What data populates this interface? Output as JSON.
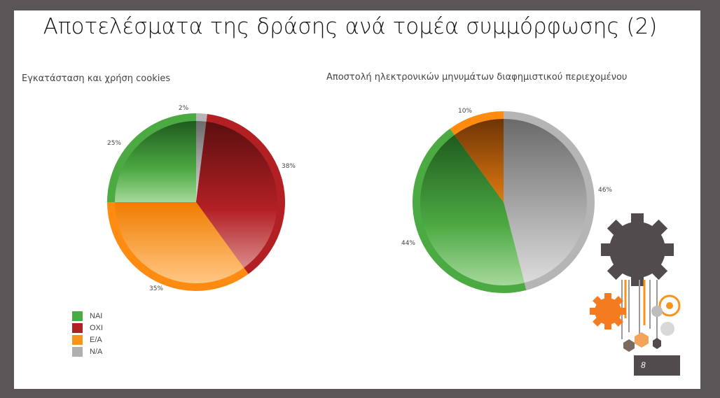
{
  "slide": {
    "title": "Αποτελέσματα της δράσης ανά τομέα συμμόρφωσης (2)",
    "page_number": "8"
  },
  "legend": [
    {
      "label": "ΝΑΙ",
      "color": "#4caa42"
    },
    {
      "label": "ΟΧΙ",
      "color": "#b32024"
    },
    {
      "label": "Ε/Α",
      "color": "#f7941d"
    },
    {
      "label": "N/A",
      "color": "#b0b0b0"
    }
  ],
  "chart_data": [
    {
      "type": "pie",
      "title": "Εγκατάσταση και χρήση cookies",
      "categories": [
        "N/A",
        "ΟΧΙ",
        "Ε/Α",
        "ΝΑΙ"
      ],
      "values": [
        2,
        38,
        35,
        25
      ],
      "labels": [
        "2%",
        "38%",
        "35%",
        "25%"
      ]
    },
    {
      "type": "pie",
      "title": "Αποστολή ηλεκτρονικών μηνυμάτων  διαφημιστικού περιεχομένου",
      "categories": [
        "N/A",
        "ΝΑΙ",
        "Ε/Α"
      ],
      "values": [
        46,
        44,
        10
      ],
      "labels": [
        "46%",
        "44%",
        "10%"
      ]
    }
  ]
}
